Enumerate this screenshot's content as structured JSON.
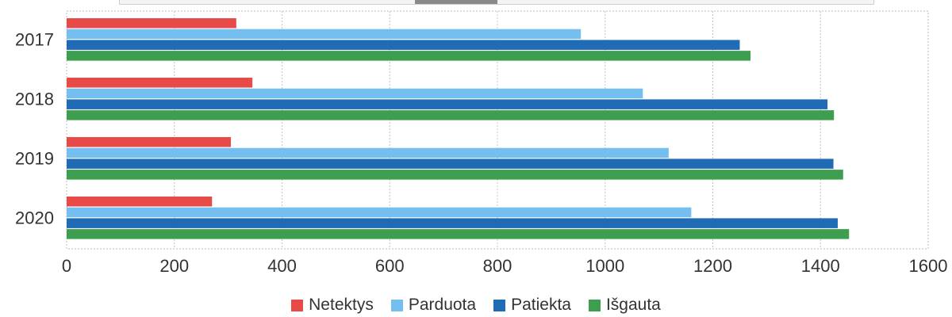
{
  "chart_data": {
    "type": "bar",
    "orientation": "horizontal",
    "categories": [
      "2017",
      "2018",
      "2019",
      "2020"
    ],
    "series": [
      {
        "name": "Netektys",
        "color": "#e84a47",
        "values": [
          315,
          345,
          305,
          270
        ]
      },
      {
        "name": "Parduota",
        "color": "#74bff0",
        "values": [
          955,
          1070,
          1118,
          1160
        ]
      },
      {
        "name": "Patiekta",
        "color": "#1f6bb6",
        "values": [
          1250,
          1413,
          1424,
          1432
        ]
      },
      {
        "name": "Išgauta",
        "color": "#3e9e4f",
        "values": [
          1270,
          1425,
          1442,
          1453
        ]
      }
    ],
    "x_ticks": [
      "0",
      "200",
      "400",
      "600",
      "800",
      "1000",
      "1200",
      "1400",
      "1600"
    ],
    "xlim": [
      0,
      1600
    ],
    "grid": "vertical dotted",
    "legend_position": "bottom-center"
  }
}
